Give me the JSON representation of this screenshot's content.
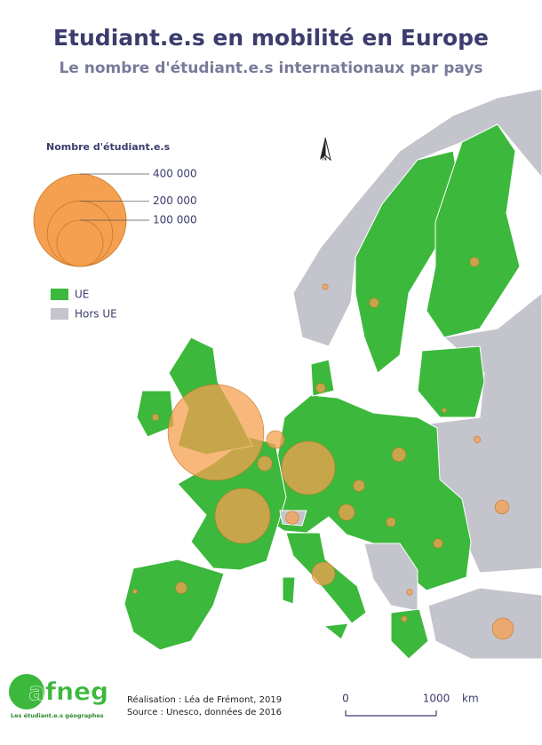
{
  "header": {
    "title": "Etudiant.e.s en mobilité en Europe",
    "subtitle": "Le nombre d'étudiant.e.s internationaux par pays"
  },
  "legend": {
    "title": "Nombre d'étudiant.e.s",
    "sizes": [
      {
        "value": 400000,
        "label": "400 000"
      },
      {
        "value": 200000,
        "label": "200 000"
      },
      {
        "value": 100000,
        "label": "100 000"
      }
    ],
    "categories": [
      {
        "label": "UE",
        "color": "#3cb83c"
      },
      {
        "label": "Hors UE",
        "color": "#c4c4cc"
      }
    ]
  },
  "bubbles": {
    "color": "#f5a050",
    "values": [
      430000,
      133000,
      142000,
      25000,
      10000,
      15000,
      8000,
      12000,
      6000,
      9000,
      6000,
      9000,
      21000,
      2000,
      4000,
      4000,
      4000,
      4000,
      1500,
      2000,
      1000,
      4000,
      1500,
      1500,
      800
    ]
  },
  "north": "N",
  "scale": {
    "ticks": [
      0,
      1000
    ],
    "unit": "km"
  },
  "credits": {
    "made_by": "Réalisation : Léa de Frémont, 2019",
    "source": "Source :  Unesco, données de 2016"
  },
  "logo": {
    "name": "afneg",
    "tagline": "Les étudiant.e.s géographes"
  }
}
